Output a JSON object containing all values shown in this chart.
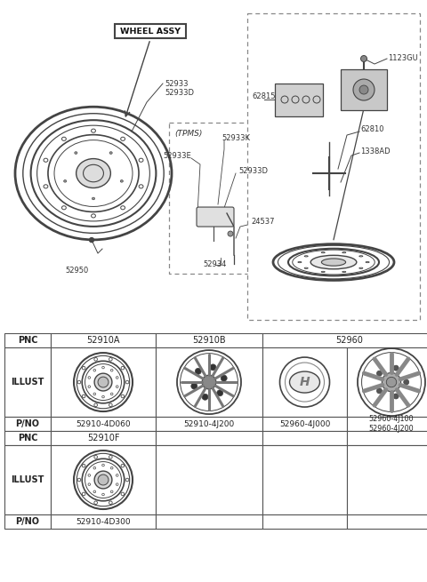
{
  "bg_color": "#ffffff",
  "line_color": "#444444",
  "text_color": "#333333",
  "dashed_color": "#888888",
  "top": {
    "wheel_assy_label": "WHEEL ASSY",
    "left_labels": [
      "52933",
      "52933D",
      "52950"
    ],
    "tpms_label": "(TPMS)",
    "tpms_parts": [
      "52933K",
      "52933E",
      "52933D",
      "24537",
      "52934"
    ],
    "right_labels": [
      "1123GU",
      "62815",
      "62810",
      "1338AD"
    ]
  },
  "table": {
    "row_labels": [
      "PNC",
      "ILLUST",
      "P/NO",
      "PNC",
      "ILLUST",
      "P/NO"
    ],
    "pnc_row1": [
      "52910A",
      "52910B",
      "52960"
    ],
    "pno_row1": [
      "52910-4D060",
      "52910-4J200",
      "52960-4J000",
      "52960-4J100\n52960-4J200"
    ],
    "pnc_row2": [
      "52910F"
    ],
    "pno_row2": [
      "52910-4D300"
    ]
  }
}
